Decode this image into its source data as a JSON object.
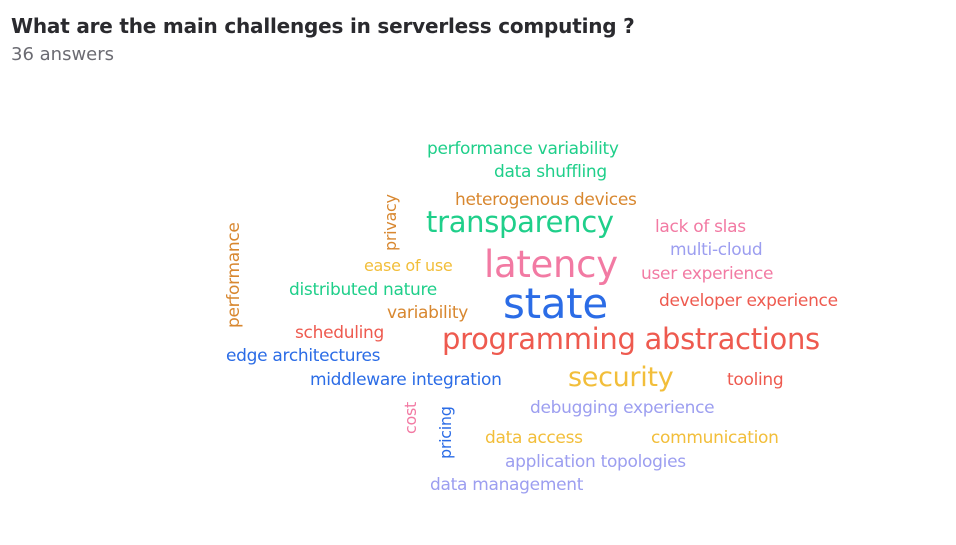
{
  "header": {
    "question": "What are the main challenges in serverless computing ?",
    "answer_count": "36 answers"
  },
  "palette": {
    "green": "#1fcf8a",
    "orange": "#d8872f",
    "pink": "#f27aa3",
    "lavender": "#9c9ef0",
    "blue": "#2b6ce6",
    "red": "#ee5a4f",
    "yellow": "#f2be3a"
  },
  "cloud": {
    "words": [
      {
        "text": "performance variability"
      },
      {
        "text": "data shuffling"
      },
      {
        "text": "heterogenous devices"
      },
      {
        "text": "privacy"
      },
      {
        "text": "transparency"
      },
      {
        "text": "lack of slas"
      },
      {
        "text": "multi-cloud"
      },
      {
        "text": "performance"
      },
      {
        "text": "ease of use"
      },
      {
        "text": "latency"
      },
      {
        "text": "user experience"
      },
      {
        "text": "distributed nature"
      },
      {
        "text": "state"
      },
      {
        "text": "developer experience"
      },
      {
        "text": "variability"
      },
      {
        "text": "scheduling"
      },
      {
        "text": "programming abstractions"
      },
      {
        "text": "edge architectures"
      },
      {
        "text": "middleware integration"
      },
      {
        "text": "security"
      },
      {
        "text": "tooling"
      },
      {
        "text": "cost"
      },
      {
        "text": "pricing"
      },
      {
        "text": "debugging experience"
      },
      {
        "text": "data access"
      },
      {
        "text": "communication"
      },
      {
        "text": "application topologies"
      },
      {
        "text": "data management"
      }
    ]
  }
}
